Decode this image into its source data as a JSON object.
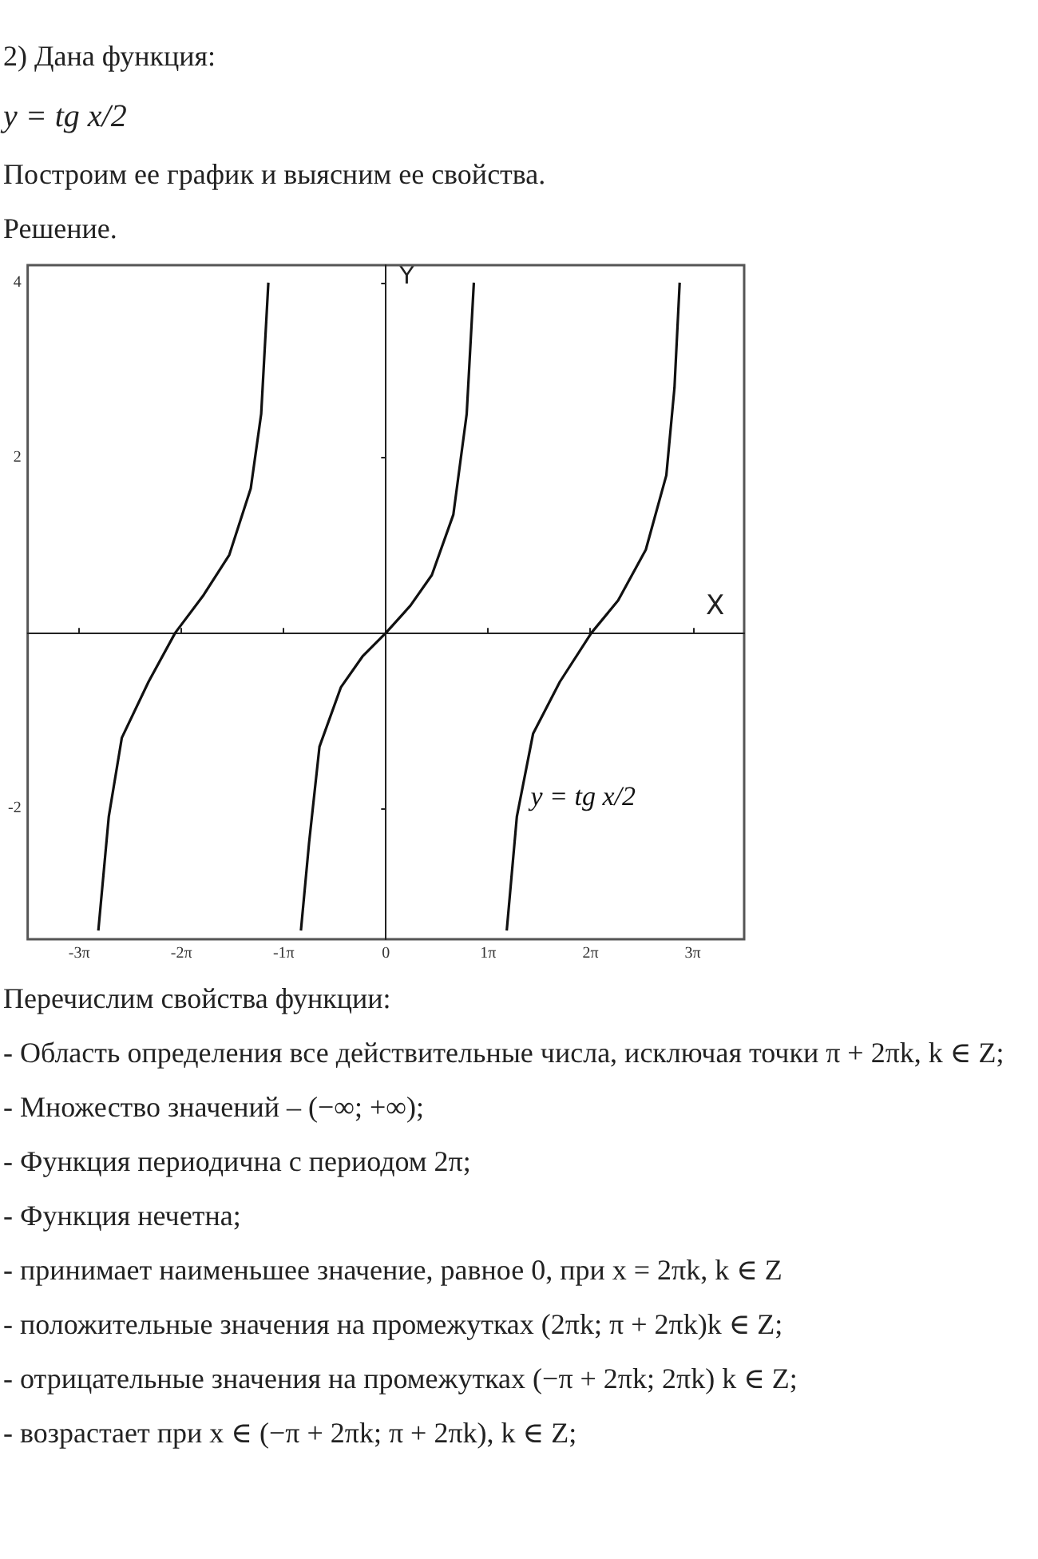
{
  "chart_data": {
    "type": "line",
    "title": "2) Дана функция:",
    "subtitle": "y = tg x/2",
    "xlabel": "X",
    "ylabel": "Y",
    "annotations": [
      "Построим ее график  и выясним ее свойства.",
      "Решение.",
      "Перечислим свойства функции:",
      "- Область определения все действительные числа, исключая точки π + 2πk, k ∈ Z;",
      "- Множество значений – (−∞; +∞);",
      "- Функция периодична с периодом 2π;",
      "- Функция нечетна;",
      "- принимает наименьшее значение, равное 0, при x = 2πk, k ∈ Z",
      "- положительные значения на промежутках (2πk;  π + 2πk)k ∈ Z;",
      "- отрицательные значения на промежутках (−π + 2πk; 2πk) k ∈ Z;",
      "- возрастает при x ∈ (−π + 2πk; π + 2πk), k ∈ Z;"
    ],
    "series": [
      {
        "name": "y = tg x/2",
        "color": "#111111",
        "x": [
          -8.83,
          -8.51,
          -8.11,
          -7.29,
          -6.47,
          -5.62,
          -4.81,
          -4.15,
          -3.83,
          -3.61,
          -3.14,
          -2.61,
          -2.36,
          -2.04,
          -1.38,
          -0.72,
          0,
          0.75,
          1.41,
          2.07,
          2.48,
          2.7,
          3.14,
          3.71,
          4.02,
          4.52,
          5.34,
          6.31,
          7.13,
          7.98,
          8.61,
          8.86,
          9.02
        ],
        "values": [
          -3.4,
          -2.1,
          -1.2,
          -0.56,
          0,
          0.42,
          0.89,
          1.65,
          2.5,
          4,
          null,
          -3.4,
          -2.4,
          -1.3,
          -0.62,
          -0.27,
          0,
          0.31,
          0.66,
          1.35,
          2.5,
          4,
          null,
          -3.4,
          -2.1,
          -1.15,
          -0.56,
          0,
          0.37,
          0.95,
          1.8,
          2.8,
          4
        ]
      }
    ],
    "xlim": [
      -11,
      11
    ],
    "ylim": [
      -3.5,
      4.2
    ],
    "xticks": [
      {
        "value": -9.42,
        "label": "-3π"
      },
      {
        "value": -6.28,
        "label": "-2π"
      },
      {
        "value": -3.14,
        "label": "-1π"
      },
      {
        "value": 0,
        "label": "0"
      },
      {
        "value": 3.14,
        "label": "1π"
      },
      {
        "value": 6.28,
        "label": "2π"
      },
      {
        "value": 9.42,
        "label": "3π"
      }
    ],
    "yticks": [
      -2,
      2,
      4
    ],
    "marker": "none",
    "line_style": "solid"
  }
}
